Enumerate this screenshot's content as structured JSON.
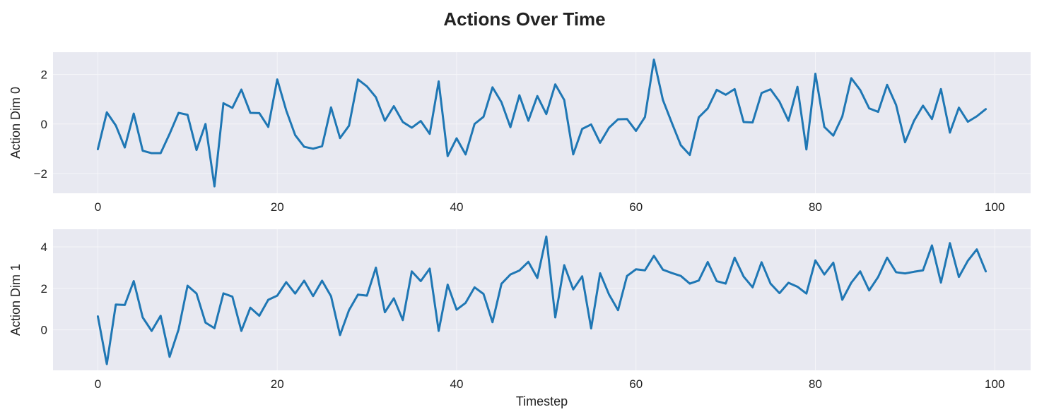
{
  "figure": {
    "title": "Actions Over Time",
    "colors": {
      "line": "#1f77b4",
      "panel_bg": "#e8e9f1",
      "grid": "#f5f5f8"
    }
  },
  "chart_data": [
    {
      "type": "line",
      "title": "",
      "xlabel": "",
      "ylabel": "Action Dim 0",
      "xlim": [
        -5,
        104
      ],
      "ylim": [
        -2.8,
        2.9
      ],
      "xticks": [
        0,
        20,
        40,
        60,
        80,
        100
      ],
      "yticks": [
        -2,
        0,
        2
      ],
      "ytick_labels": [
        "−2",
        "0",
        "2"
      ],
      "grid": true,
      "series": [
        {
          "x": [
            0,
            1,
            2,
            3,
            4,
            5,
            6,
            7,
            8,
            9,
            10,
            11,
            12,
            13,
            14,
            15,
            16,
            17,
            18,
            19,
            20,
            21,
            22,
            23,
            24,
            25,
            26,
            27,
            28,
            29,
            30,
            31,
            32,
            33,
            34,
            35,
            36,
            37,
            38,
            39,
            40,
            41,
            42,
            43,
            44,
            45,
            46,
            47,
            48,
            49,
            50,
            51,
            52,
            53,
            54,
            55,
            56,
            57,
            58,
            59,
            60,
            61,
            62,
            63,
            64,
            65,
            66,
            67,
            68,
            69,
            70,
            71,
            72,
            73,
            74,
            75,
            76,
            77,
            78,
            79,
            80,
            81,
            82,
            83,
            84,
            85,
            86,
            87,
            88,
            89,
            90,
            91,
            92,
            93,
            94,
            95,
            96,
            97,
            98,
            99
          ],
          "y": [
            -1.02,
            0.47,
            -0.06,
            -0.95,
            0.42,
            -1.08,
            -1.18,
            -1.18,
            -0.4,
            0.45,
            0.37,
            -1.05,
            0.0,
            -2.52,
            0.84,
            0.65,
            1.39,
            0.45,
            0.44,
            -0.12,
            1.8,
            0.55,
            -0.45,
            -0.92,
            -1.0,
            -0.9,
            0.67,
            -0.57,
            -0.07,
            1.8,
            1.52,
            1.08,
            0.13,
            0.72,
            0.08,
            -0.15,
            0.12,
            -0.4,
            1.72,
            -1.3,
            -0.58,
            -1.23,
            0.0,
            0.29,
            1.48,
            0.88,
            -0.13,
            1.16,
            0.13,
            1.13,
            0.4,
            1.6,
            0.97,
            -1.23,
            -0.2,
            -0.02,
            -0.76,
            -0.15,
            0.19,
            0.2,
            -0.28,
            0.28,
            2.6,
            0.97,
            0.04,
            -0.86,
            -1.25,
            0.27,
            0.63,
            1.38,
            1.18,
            1.41,
            0.08,
            0.06,
            1.25,
            1.4,
            0.9,
            0.13,
            1.5,
            -1.03,
            2.03,
            -0.12,
            -0.47,
            0.3,
            1.85,
            1.37,
            0.63,
            0.49,
            1.58,
            0.77,
            -0.74,
            0.13,
            0.74,
            0.2,
            1.41,
            -0.35,
            0.66,
            0.09,
            0.31,
            0.6
          ]
        }
      ]
    },
    {
      "type": "line",
      "title": "",
      "xlabel": "Timestep",
      "ylabel": "Action Dim 1",
      "xlim": [
        -5,
        104
      ],
      "ylim": [
        -1.95,
        4.85
      ],
      "xticks": [
        0,
        20,
        40,
        60,
        80,
        100
      ],
      "yticks": [
        0,
        2,
        4
      ],
      "ytick_labels": [
        "0",
        "2",
        "4"
      ],
      "grid": true,
      "series": [
        {
          "x": [
            0,
            1,
            2,
            3,
            4,
            5,
            6,
            7,
            8,
            9,
            10,
            11,
            12,
            13,
            14,
            15,
            16,
            17,
            18,
            19,
            20,
            21,
            22,
            23,
            24,
            25,
            26,
            27,
            28,
            29,
            30,
            31,
            32,
            33,
            34,
            35,
            36,
            37,
            38,
            39,
            40,
            41,
            42,
            43,
            44,
            45,
            46,
            47,
            48,
            49,
            50,
            51,
            52,
            53,
            54,
            55,
            56,
            57,
            58,
            59,
            60,
            61,
            62,
            63,
            64,
            65,
            66,
            67,
            68,
            69,
            70,
            71,
            72,
            73,
            74,
            75,
            76,
            77,
            78,
            79,
            80,
            81,
            82,
            83,
            84,
            85,
            86,
            87,
            88,
            89,
            90,
            91,
            92,
            93,
            94,
            95,
            96,
            97,
            98,
            99
          ],
          "y": [
            0.65,
            -1.65,
            1.22,
            1.2,
            2.35,
            0.6,
            -0.05,
            0.68,
            -1.3,
            0.02,
            2.13,
            1.75,
            0.35,
            0.08,
            1.76,
            1.6,
            -0.05,
            1.07,
            0.68,
            1.45,
            1.65,
            2.3,
            1.75,
            2.37,
            1.63,
            2.37,
            1.62,
            -0.25,
            0.95,
            1.7,
            1.65,
            3.0,
            0.85,
            1.52,
            0.47,
            2.82,
            2.35,
            2.95,
            -0.05,
            2.18,
            0.97,
            1.3,
            2.05,
            1.73,
            0.37,
            2.22,
            2.67,
            2.86,
            3.28,
            2.5,
            4.5,
            0.6,
            3.12,
            1.95,
            2.58,
            0.07,
            2.73,
            1.7,
            0.95,
            2.6,
            2.92,
            2.87,
            3.57,
            2.9,
            2.74,
            2.6,
            2.23,
            2.38,
            3.27,
            2.35,
            2.23,
            3.48,
            2.57,
            2.05,
            3.26,
            2.23,
            1.77,
            2.27,
            2.08,
            1.75,
            3.35,
            2.67,
            3.24,
            1.45,
            2.27,
            2.82,
            1.9,
            2.55,
            3.48,
            2.78,
            2.72,
            2.8,
            2.87,
            4.07,
            2.28,
            4.18,
            2.55,
            3.33,
            3.88,
            2.82
          ]
        }
      ]
    }
  ]
}
